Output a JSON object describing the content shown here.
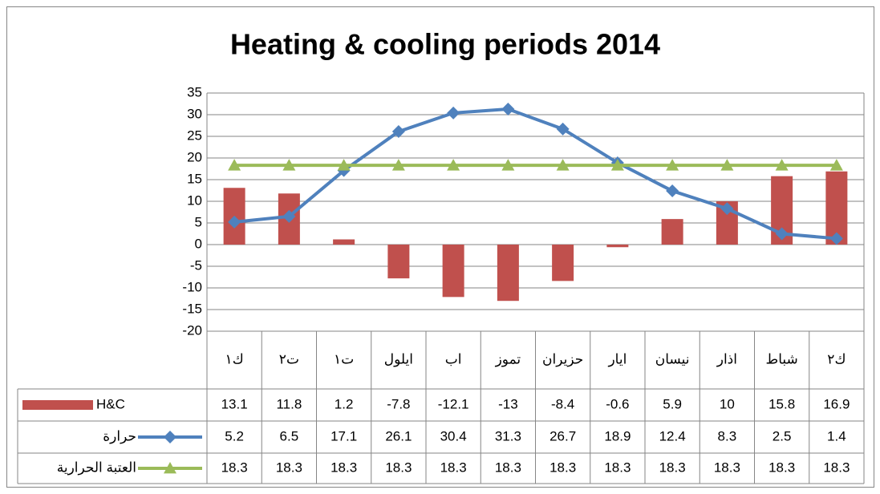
{
  "chart_data": {
    "type": "bar",
    "title": "Heating & cooling periods 2014",
    "categories": [
      "ك١",
      "ت٢",
      "ت١",
      "ايلول",
      "اب",
      "تموز",
      "حزيران",
      "ايار",
      "نيسان",
      "اذار",
      "شباط",
      "ك٢"
    ],
    "series": [
      {
        "name": "H&C",
        "type": "bar",
        "color": "#c0504d",
        "values": [
          13.1,
          11.8,
          1.2,
          -7.8,
          -12.1,
          -13,
          -8.4,
          -0.6,
          5.9,
          10,
          15.8,
          16.9
        ]
      },
      {
        "name": "حرارة",
        "type": "line",
        "marker": "diamond",
        "color": "#4f81bd",
        "values": [
          5.2,
          6.5,
          17.1,
          26.1,
          30.4,
          31.3,
          26.7,
          18.9,
          12.4,
          8.3,
          2.5,
          1.4
        ]
      },
      {
        "name": "العتبة الحرارية",
        "type": "line",
        "marker": "triangle",
        "color": "#9bbb59",
        "values": [
          18.3,
          18.3,
          18.3,
          18.3,
          18.3,
          18.3,
          18.3,
          18.3,
          18.3,
          18.3,
          18.3,
          18.3
        ]
      }
    ],
    "ylim": [
      -20,
      35
    ],
    "yticks": [
      -20,
      -15,
      -10,
      -5,
      0,
      5,
      10,
      15,
      20,
      25,
      30,
      35
    ],
    "grid": true,
    "data_table": true
  }
}
